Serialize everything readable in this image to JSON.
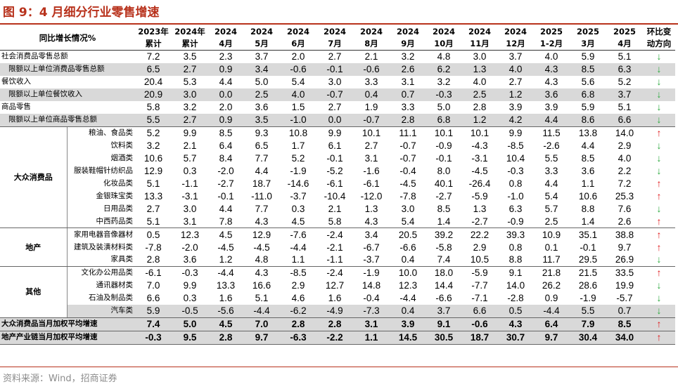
{
  "title": "图 9：4 月细分行业零售增速",
  "source": "资料来源：Wind，招商证券",
  "colors": {
    "accent": "#b8321c",
    "up": "#e0191b",
    "down": "#29a83b",
    "shade": "#d9d9d9"
  },
  "header": {
    "row_label": "同比增长情况%",
    "cols": [
      {
        "top": "2023年",
        "bottom": "累计"
      },
      {
        "top": "2024年",
        "bottom": "累计"
      },
      {
        "top": "2024",
        "bottom": "4月"
      },
      {
        "top": "2024",
        "bottom": "5月"
      },
      {
        "top": "2024",
        "bottom": "6月"
      },
      {
        "top": "2024",
        "bottom": "7月"
      },
      {
        "top": "2024",
        "bottom": "8月"
      },
      {
        "top": "2024",
        "bottom": "9月"
      },
      {
        "top": "2024",
        "bottom": "10月"
      },
      {
        "top": "2024",
        "bottom": "11月"
      },
      {
        "top": "2024",
        "bottom": "12月"
      },
      {
        "top": "2025",
        "bottom": "1-2月"
      },
      {
        "top": "2025",
        "bottom": "3月"
      },
      {
        "top": "2025",
        "bottom": "4月"
      }
    ],
    "trend": {
      "top": "环比变",
      "bottom": "动方向"
    }
  },
  "top_rows": [
    {
      "label": "社会消费品零售总额",
      "values": [
        "7.2",
        "3.5",
        "2.3",
        "3.7",
        "2.0",
        "2.7",
        "2.1",
        "3.2",
        "4.8",
        "3.0",
        "3.7",
        "4.0",
        "5.9",
        "5.1"
      ],
      "trend": "down"
    },
    {
      "label": "限额以上单位消费品零售总额",
      "values": [
        "6.5",
        "2.7",
        "0.9",
        "3.4",
        "-0.6",
        "-0.1",
        "-0.6",
        "2.6",
        "6.2",
        "1.3",
        "4.0",
        "4.3",
        "8.5",
        "6.3"
      ],
      "trend": "down"
    },
    {
      "label": "餐饮收入",
      "values": [
        "20.4",
        "5.3",
        "4.4",
        "5.0",
        "5.4",
        "3.0",
        "3.3",
        "3.1",
        "3.2",
        "4.0",
        "2.7",
        "4.3",
        "5.6",
        "5.2"
      ],
      "trend": "down"
    },
    {
      "label": "限额以上单位餐饮收入",
      "values": [
        "20.9",
        "3.0",
        "0.0",
        "2.5",
        "4.0",
        "-0.7",
        "0.4",
        "0.7",
        "-0.3",
        "2.5",
        "1.2",
        "3.6",
        "6.8",
        "3.7"
      ],
      "trend": "down"
    },
    {
      "label": "商品零售",
      "values": [
        "5.8",
        "3.2",
        "2.0",
        "3.6",
        "1.5",
        "2.7",
        "1.9",
        "3.3",
        "5.0",
        "2.8",
        "3.9",
        "3.9",
        "5.9",
        "5.1"
      ],
      "trend": "down"
    },
    {
      "label": "限额以上单位商品零售总额",
      "values": [
        "5.5",
        "2.7",
        "0.9",
        "3.5",
        "-1.0",
        "0.0",
        "-0.7",
        "2.8",
        "6.8",
        "1.2",
        "4.2",
        "4.4",
        "8.6",
        "6.6"
      ],
      "trend": "down"
    }
  ],
  "groups": [
    {
      "name": "大众消费品",
      "rows": [
        {
          "label": "粮油、食品类",
          "values": [
            "5.2",
            "9.9",
            "8.5",
            "9.3",
            "10.8",
            "9.9",
            "10.1",
            "11.1",
            "10.1",
            "10.1",
            "9.9",
            "11.5",
            "13.8",
            "14.0"
          ],
          "trend": "up"
        },
        {
          "label": "饮料类",
          "values": [
            "3.2",
            "2.1",
            "6.4",
            "6.5",
            "1.7",
            "6.1",
            "2.7",
            "-0.7",
            "-0.9",
            "-4.3",
            "-8.5",
            "-2.6",
            "4.4",
            "2.9"
          ],
          "trend": "down"
        },
        {
          "label": "烟酒类",
          "values": [
            "10.6",
            "5.7",
            "8.4",
            "7.7",
            "5.2",
            "-0.1",
            "3.1",
            "-0.7",
            "-0.1",
            "-3.1",
            "10.4",
            "5.5",
            "8.5",
            "4.0"
          ],
          "trend": "down"
        },
        {
          "label": "服装鞋帽针纺织品",
          "values": [
            "12.9",
            "0.3",
            "-2.0",
            "4.4",
            "-1.9",
            "-5.2",
            "-1.6",
            "-0.4",
            "8.0",
            "-4.5",
            "-0.3",
            "3.3",
            "3.6",
            "2.2"
          ],
          "trend": "down"
        },
        {
          "label": "化妆品类",
          "values": [
            "5.1",
            "-1.1",
            "-2.7",
            "18.7",
            "-14.6",
            "-6.1",
            "-6.1",
            "-4.5",
            "40.1",
            "-26.4",
            "0.8",
            "4.4",
            "1.1",
            "7.2"
          ],
          "trend": "up"
        },
        {
          "label": "金银珠宝类",
          "values": [
            "13.3",
            "-3.1",
            "-0.1",
            "-11.0",
            "-3.7",
            "-10.4",
            "-12.0",
            "-7.8",
            "-2.7",
            "-5.9",
            "-1.0",
            "5.4",
            "10.6",
            "25.3"
          ],
          "trend": "up"
        },
        {
          "label": "日用品类",
          "values": [
            "2.7",
            "3.0",
            "4.4",
            "7.7",
            "0.3",
            "2.1",
            "1.3",
            "3.0",
            "8.5",
            "1.3",
            "6.3",
            "5.7",
            "8.8",
            "7.6"
          ],
          "trend": "down"
        },
        {
          "label": "中西药品类",
          "values": [
            "5.1",
            "3.1",
            "7.8",
            "4.3",
            "4.5",
            "5.8",
            "4.3",
            "5.4",
            "1.4",
            "-2.7",
            "-0.9",
            "2.5",
            "1.4",
            "2.6"
          ],
          "trend": "up"
        }
      ]
    },
    {
      "name": "地产",
      "rows": [
        {
          "label": "家用电器音像器材",
          "values": [
            "0.5",
            "12.3",
            "4.5",
            "12.9",
            "-7.6",
            "-2.4",
            "3.4",
            "20.5",
            "39.2",
            "22.2",
            "39.3",
            "10.9",
            "35.1",
            "38.8"
          ],
          "trend": "up"
        },
        {
          "label": "建筑及装潢材料类",
          "values": [
            "-7.8",
            "-2.0",
            "-4.5",
            "-4.5",
            "-4.4",
            "-2.1",
            "-6.7",
            "-6.6",
            "-5.8",
            "2.9",
            "0.8",
            "0.1",
            "-0.1",
            "9.7"
          ],
          "trend": "up"
        },
        {
          "label": "家具类",
          "values": [
            "2.8",
            "3.6",
            "1.2",
            "4.8",
            "1.1",
            "-1.1",
            "-3.7",
            "0.4",
            "7.4",
            "10.5",
            "8.8",
            "11.7",
            "29.5",
            "26.9"
          ],
          "trend": "down"
        }
      ]
    },
    {
      "name": "其他",
      "rows": [
        {
          "label": "文化办公用品类",
          "values": [
            "-6.1",
            "-0.3",
            "-4.4",
            "4.3",
            "-8.5",
            "-2.4",
            "-1.9",
            "10.0",
            "18.0",
            "-5.9",
            "9.1",
            "21.8",
            "21.5",
            "33.5"
          ],
          "trend": "up"
        },
        {
          "label": "通讯器材类",
          "values": [
            "7.0",
            "9.9",
            "13.3",
            "16.6",
            "2.9",
            "12.7",
            "14.8",
            "12.3",
            "14.4",
            "-7.7",
            "14.0",
            "26.2",
            "28.6",
            "19.9"
          ],
          "trend": "down"
        },
        {
          "label": "石油及制品类",
          "values": [
            "6.6",
            "0.3",
            "1.6",
            "5.1",
            "4.6",
            "1.6",
            "-0.4",
            "-4.4",
            "-6.6",
            "-7.1",
            "-2.8",
            "0.9",
            "-1.9",
            "-5.7"
          ],
          "trend": "down"
        },
        {
          "label": "汽车类",
          "values": [
            "5.9",
            "-0.5",
            "-5.6",
            "-4.4",
            "-6.2",
            "-4.9",
            "-7.3",
            "0.4",
            "3.7",
            "6.6",
            "0.5",
            "-4.4",
            "5.5",
            "0.7"
          ],
          "trend": "down"
        }
      ]
    }
  ],
  "summary_rows": [
    {
      "label": "大众消费品当月加权平均增速",
      "values": [
        "7.4",
        "5.0",
        "4.5",
        "7.0",
        "2.8",
        "2.8",
        "3.1",
        "3.9",
        "9.1",
        "-0.6",
        "4.3",
        "6.4",
        "7.9",
        "8.5"
      ],
      "trend": "up"
    },
    {
      "label": "地产产业链当月加权平均增速",
      "values": [
        "-0.3",
        "9.5",
        "2.8",
        "9.7",
        "-6.3",
        "-2.2",
        "1.1",
        "14.5",
        "30.5",
        "18.7",
        "30.7",
        "9.7",
        "30.4",
        "34.0"
      ],
      "trend": "up"
    }
  ],
  "arrows": {
    "up": "↑",
    "down": "↓"
  }
}
